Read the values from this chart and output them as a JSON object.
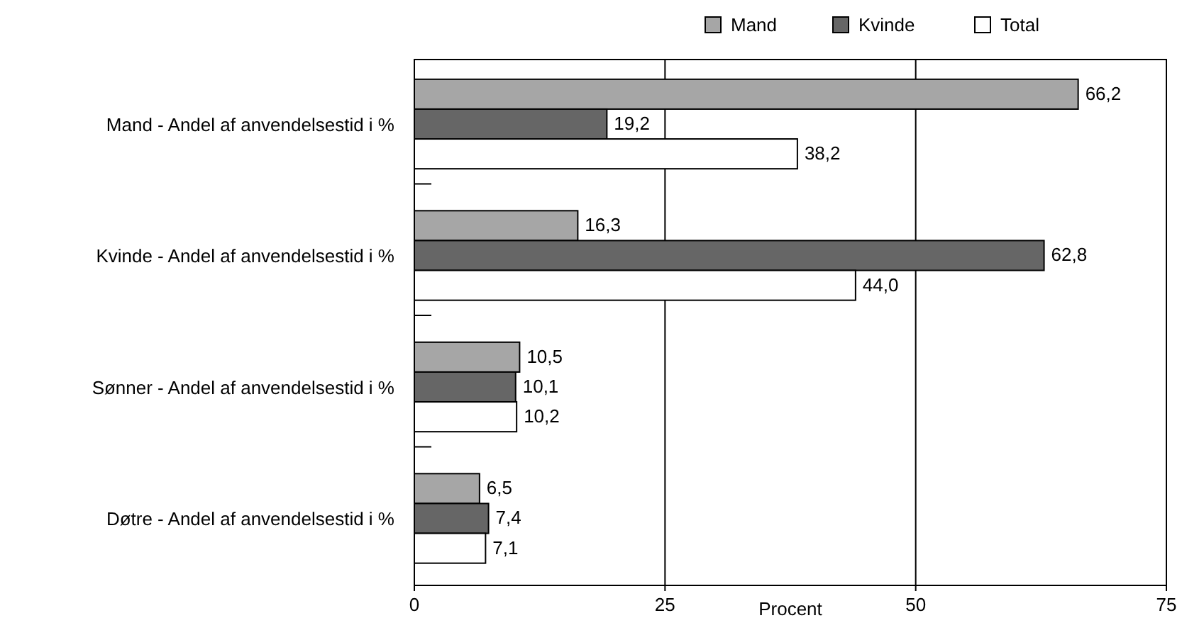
{
  "chart_data": {
    "type": "bar",
    "orientation": "horizontal",
    "xlabel": "Procent",
    "categories": [
      "Mand - Andel af anvendelsestid i %",
      "Kvinde - Andel af anvendelsestid i %",
      "Sønner - Andel af anvendelsestid i %",
      "Døtre - Andel af anvendelsestid i %"
    ],
    "series": [
      {
        "name": "Mand",
        "color": "#a6a6a6",
        "values": [
          66.2,
          16.3,
          10.5,
          6.5
        ],
        "value_labels": [
          "66,2",
          "16,3",
          "10,5",
          "6,5"
        ]
      },
      {
        "name": "Kvinde",
        "color": "#666666",
        "values": [
          19.2,
          62.8,
          10.1,
          7.4
        ],
        "value_labels": [
          "19,2",
          "62,8",
          "10,1",
          "7,4"
        ]
      },
      {
        "name": "Total",
        "color": "#ffffff",
        "values": [
          38.2,
          44.0,
          10.2,
          7.1
        ],
        "value_labels": [
          "38,2",
          "44,0",
          "10,2",
          "7,1"
        ]
      }
    ],
    "xlim": [
      0,
      75
    ],
    "xticks": [
      0,
      25,
      50,
      75
    ],
    "grid": "x",
    "legend": "top"
  }
}
